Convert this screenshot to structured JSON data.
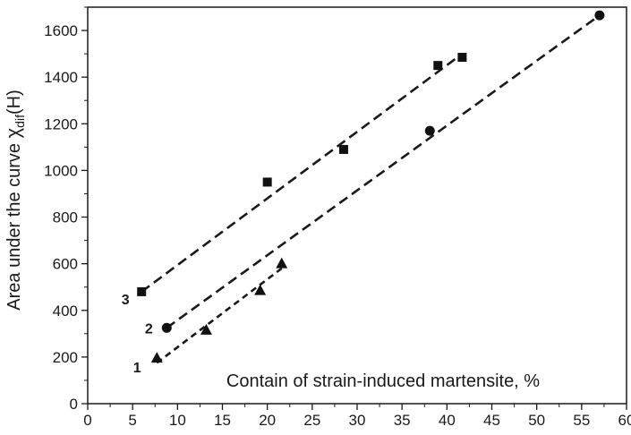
{
  "chart_data": {
    "type": "scatter",
    "xlabel": "Contain of strain-induced martensite, %",
    "ylabel_main": "Area under the curve ",
    "ylabel_chi": "χ",
    "ylabel_sub": "dif",
    "ylabel_tail": "(H)",
    "xlim": [
      0,
      60
    ],
    "ylim": [
      0,
      1700
    ],
    "x_ticks": [
      "0",
      "5",
      "10",
      "15",
      "20",
      "25",
      "30",
      "35",
      "40",
      "45",
      "50",
      "55",
      "60"
    ],
    "y_ticks": [
      "0",
      "200",
      "400",
      "600",
      "800",
      "1000",
      "1200",
      "1400",
      "1600"
    ],
    "grid": false,
    "series": [
      {
        "name": "1",
        "marker": "triangle",
        "x": [
          7.7,
          13.2,
          19.2,
          21.6
        ],
        "y": [
          195,
          315,
          485,
          600
        ],
        "fit": {
          "x": [
            7.7,
            21.6
          ],
          "y": [
            175,
            580
          ]
        }
      },
      {
        "name": "2",
        "marker": "circle",
        "x": [
          8.8,
          38.1,
          57.0
        ],
        "y": [
          325,
          1170,
          1665
        ],
        "fit": {
          "x": [
            8.8,
            57.0
          ],
          "y": [
            325,
            1665
          ]
        }
      },
      {
        "name": "3",
        "marker": "square",
        "x": [
          6.0,
          20.0,
          28.5,
          39.0,
          41.7
        ],
        "y": [
          480,
          950,
          1090,
          1450,
          1485
        ],
        "fit": {
          "x": [
            6.0,
            41.7
          ],
          "y": [
            480,
            1500
          ]
        }
      }
    ]
  }
}
